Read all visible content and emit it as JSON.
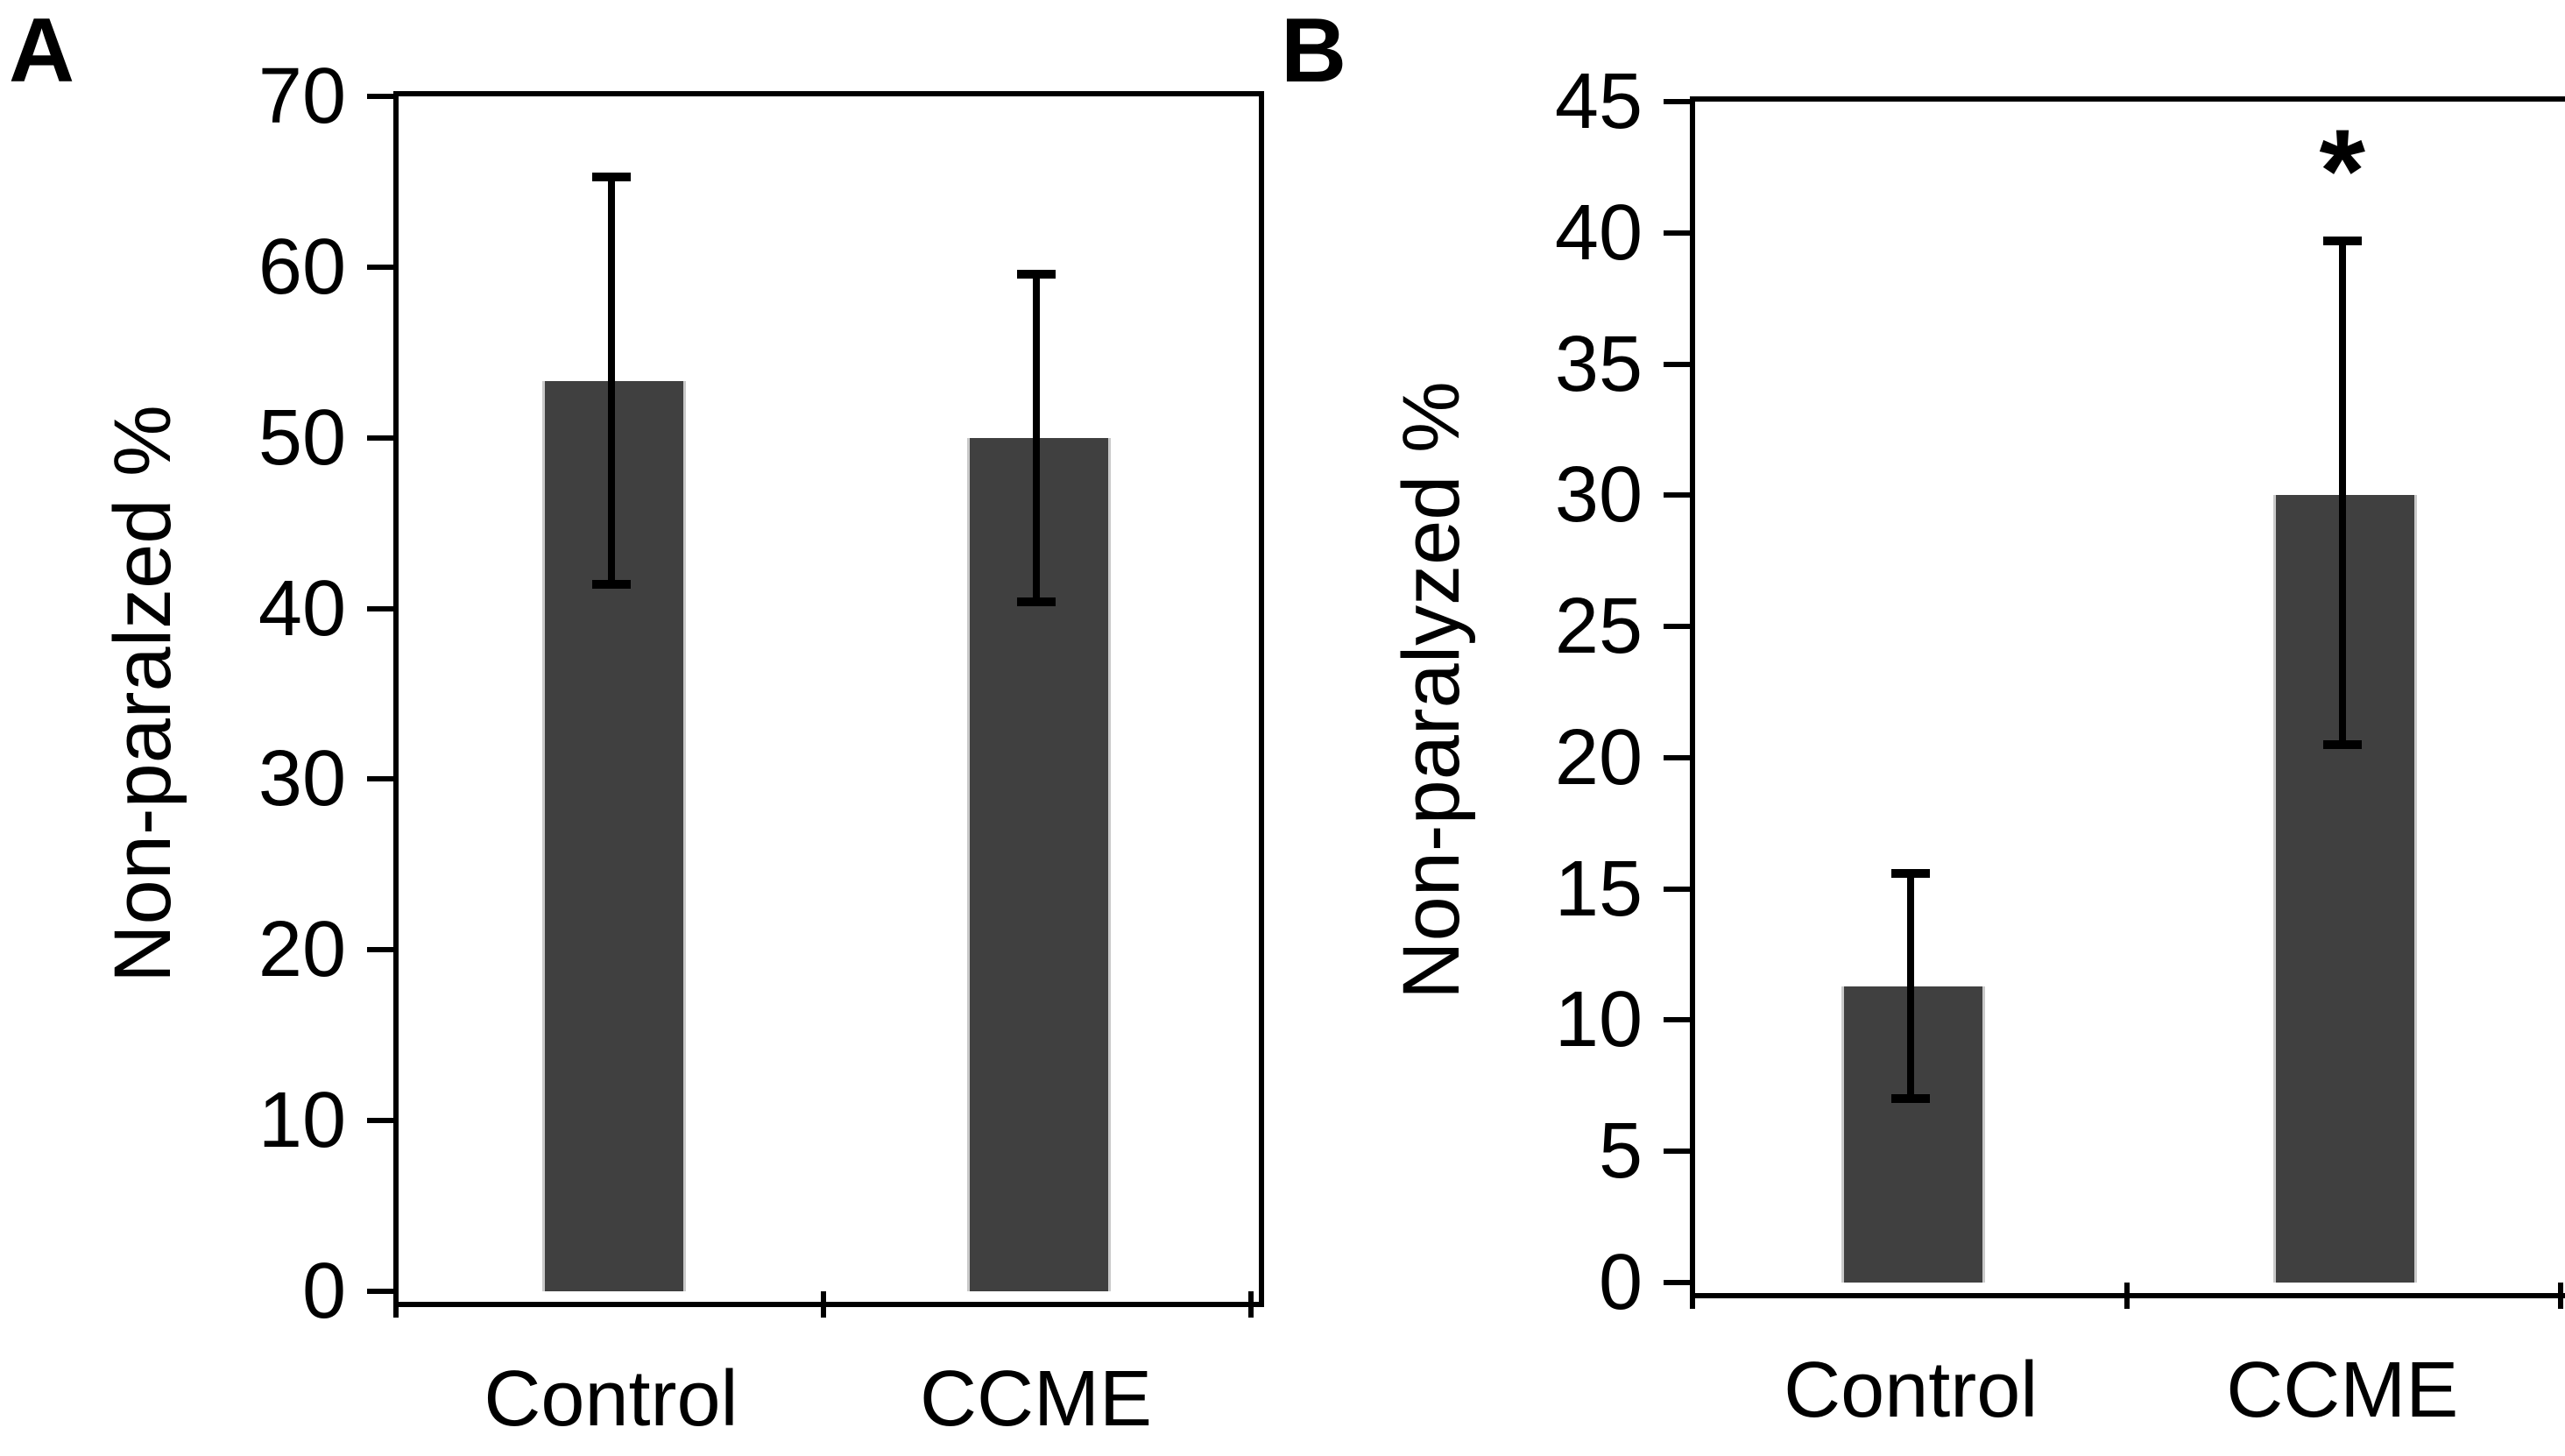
{
  "chart_data": [
    {
      "type": "bar",
      "panel_label": "A",
      "categories": [
        "Control",
        "CCME"
      ],
      "values": [
        53.3,
        50.0
      ],
      "error_low": [
        41.4,
        40.4
      ],
      "error_high": [
        65.3,
        59.6
      ],
      "annotations": [
        "",
        ""
      ],
      "ylabel": "Non-paralzed %",
      "xlabel": "",
      "ylim": [
        0,
        70
      ],
      "ytick_step": 10,
      "grid": false,
      "legend": "none"
    },
    {
      "type": "bar",
      "panel_label": "B",
      "categories": [
        "Control",
        "CCME"
      ],
      "values": [
        11.3,
        30.0
      ],
      "error_low": [
        7.0,
        20.5
      ],
      "error_high": [
        15.6,
        39.7
      ],
      "annotations": [
        "",
        "*"
      ],
      "ylabel": "Non-paralyzed %",
      "xlabel": "",
      "ylim": [
        0,
        45
      ],
      "ytick_step": 5,
      "grid": false,
      "legend": "none"
    }
  ],
  "colors": {
    "bar_fill": "#404040",
    "bar_edge": "#c9c9c9",
    "axis": "#000000",
    "text": "#000000",
    "significance_marker": "#000000",
    "background": "#ffffff"
  }
}
